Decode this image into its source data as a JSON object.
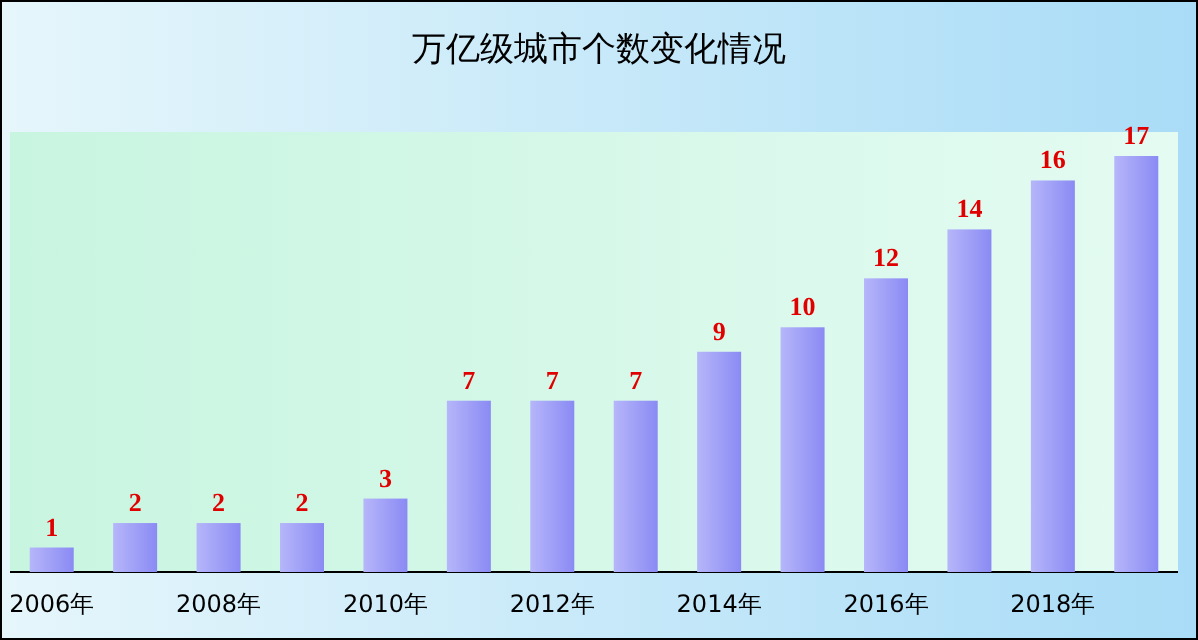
{
  "chart_data": {
    "type": "bar",
    "title": "万亿级城市个数变化情况",
    "categories": [
      "2006年",
      null,
      "2008年",
      null,
      "2010年",
      null,
      "2012年",
      null,
      "2014年",
      null,
      "2016年",
      null,
      "2018年",
      null
    ],
    "values": [
      1,
      2,
      2,
      2,
      3,
      7,
      7,
      7,
      9,
      10,
      12,
      14,
      16,
      17
    ],
    "color": "#8a8af4",
    "data_labels": true
  }
}
